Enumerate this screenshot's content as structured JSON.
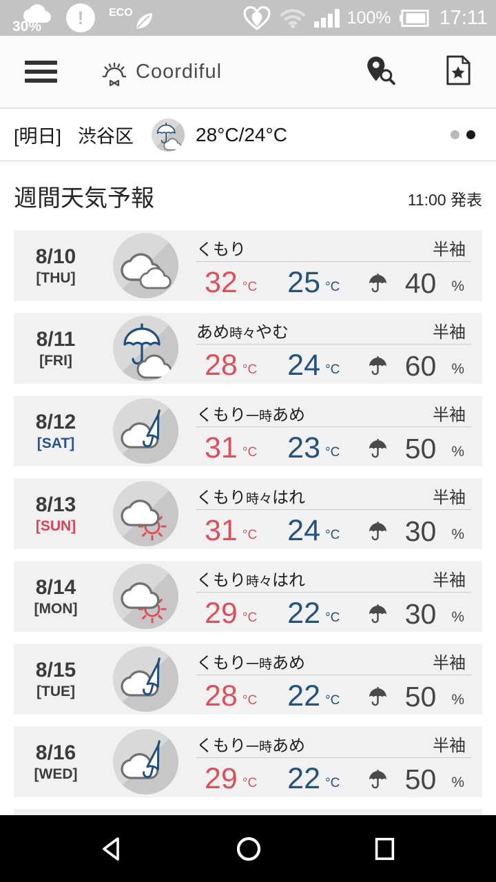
{
  "status_bar": {
    "cloud_percent": "30%",
    "eco_label": "ECO",
    "battery_percent": "100%",
    "time": "17:11"
  },
  "header": {
    "app_name": "Coordiful"
  },
  "tomorrow_bar": {
    "day_label": "[明日]",
    "location": "渋谷区",
    "icon": "umbrella-cloud-icon",
    "temps": "28°C/24°C"
  },
  "weekly": {
    "title": "週間天気予報",
    "issued": "11:00 発表"
  },
  "forecast": {
    "rows": [
      {
        "date": "8/10",
        "day": "[THU]",
        "day_color": "#3c3c3c",
        "icon": "clouds-icon",
        "desc": [
          {
            "text": "くもり",
            "small": false
          }
        ],
        "high": "32",
        "low": "25",
        "unit": "°C",
        "pop": "40",
        "pop_unit": "%",
        "outfit": "半袖"
      },
      {
        "date": "8/11",
        "day": "[FRI]",
        "day_color": "#3c3c3c",
        "icon": "umbrella-cloud-icon",
        "desc": [
          {
            "text": "あめ",
            "small": false
          },
          {
            "text": "時々",
            "small": true
          },
          {
            "text": "やむ",
            "small": false
          }
        ],
        "high": "28",
        "low": "24",
        "unit": "°C",
        "pop": "60",
        "pop_unit": "%",
        "outfit": "半袖"
      },
      {
        "date": "8/12",
        "day": "[SAT]",
        "day_color": "#27548d",
        "icon": "cloud-closed-umbrella-icon",
        "desc": [
          {
            "text": "くもり",
            "small": false
          },
          {
            "text": "一時",
            "small": true
          },
          {
            "text": "あめ",
            "small": false
          }
        ],
        "high": "31",
        "low": "23",
        "unit": "°C",
        "pop": "50",
        "pop_unit": "%",
        "outfit": "半袖"
      },
      {
        "date": "8/13",
        "day": "[SUN]",
        "day_color": "#dc4150",
        "icon": "cloud-sun-icon",
        "desc": [
          {
            "text": "くもり",
            "small": false
          },
          {
            "text": "時々",
            "small": true
          },
          {
            "text": "はれ",
            "small": false
          }
        ],
        "high": "31",
        "low": "24",
        "unit": "°C",
        "pop": "30",
        "pop_unit": "%",
        "outfit": "半袖"
      },
      {
        "date": "8/14",
        "day": "[MON]",
        "day_color": "#3c3c3c",
        "icon": "cloud-sun-icon",
        "desc": [
          {
            "text": "くもり",
            "small": false
          },
          {
            "text": "時々",
            "small": true
          },
          {
            "text": "はれ",
            "small": false
          }
        ],
        "high": "29",
        "low": "22",
        "unit": "°C",
        "pop": "30",
        "pop_unit": "%",
        "outfit": "半袖"
      },
      {
        "date": "8/15",
        "day": "[TUE]",
        "day_color": "#3c3c3c",
        "icon": "cloud-closed-umbrella-icon",
        "desc": [
          {
            "text": "くもり",
            "small": false
          },
          {
            "text": "一時",
            "small": true
          },
          {
            "text": "あめ",
            "small": false
          }
        ],
        "high": "28",
        "low": "22",
        "unit": "°C",
        "pop": "50",
        "pop_unit": "%",
        "outfit": "半袖"
      },
      {
        "date": "8/16",
        "day": "[WED]",
        "day_color": "#3c3c3c",
        "icon": "cloud-closed-umbrella-icon",
        "desc": [
          {
            "text": "くもり",
            "small": false
          },
          {
            "text": "一時",
            "small": true
          },
          {
            "text": "あめ",
            "small": false
          }
        ],
        "high": "29",
        "low": "22",
        "unit": "°C",
        "pop": "50",
        "pop_unit": "%",
        "outfit": "半袖"
      }
    ]
  },
  "colors": {
    "high_temp": "#dd4f5c",
    "low_temp": "#235180",
    "saturday": "#27548d",
    "sunday": "#dc4150",
    "row_background": "#f1f1f1",
    "status_bar_background": "#c3c3c3"
  }
}
